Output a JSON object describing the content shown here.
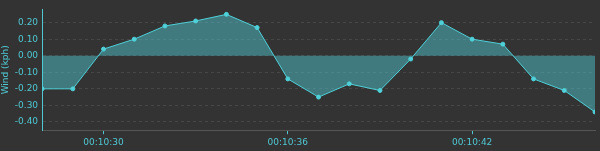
{
  "chart_data": {
    "type": "area",
    "y_label": "Wind (kph)",
    "categories": [
      null,
      null,
      "00:10:30",
      null,
      null,
      null,
      null,
      null,
      "00:10:36",
      null,
      null,
      null,
      null,
      null,
      "00:10:42",
      null,
      null,
      null,
      null
    ],
    "values": [
      -0.2,
      -0.2,
      0.04,
      0.1,
      0.18,
      0.21,
      0.25,
      0.17,
      -0.14,
      -0.25,
      -0.17,
      -0.21,
      -0.02,
      0.2,
      0.1,
      0.07,
      -0.14,
      -0.21,
      -0.34
    ],
    "color": "#4fd1d9",
    "marker": "circle",
    "ylim": [
      -0.45,
      0.28
    ],
    "yticks": [
      {
        "value": -0.4,
        "label": "-0.40"
      },
      {
        "value": -0.3,
        "label": "-0.30"
      },
      {
        "value": -0.2,
        "label": "-0.20"
      },
      {
        "value": -0.1,
        "label": "-0.10"
      },
      {
        "value": 0,
        "label": "0.00"
      },
      {
        "value": 0.1,
        "label": "0.10"
      },
      {
        "value": 0.2,
        "label": "0.20"
      }
    ],
    "grid": true
  }
}
